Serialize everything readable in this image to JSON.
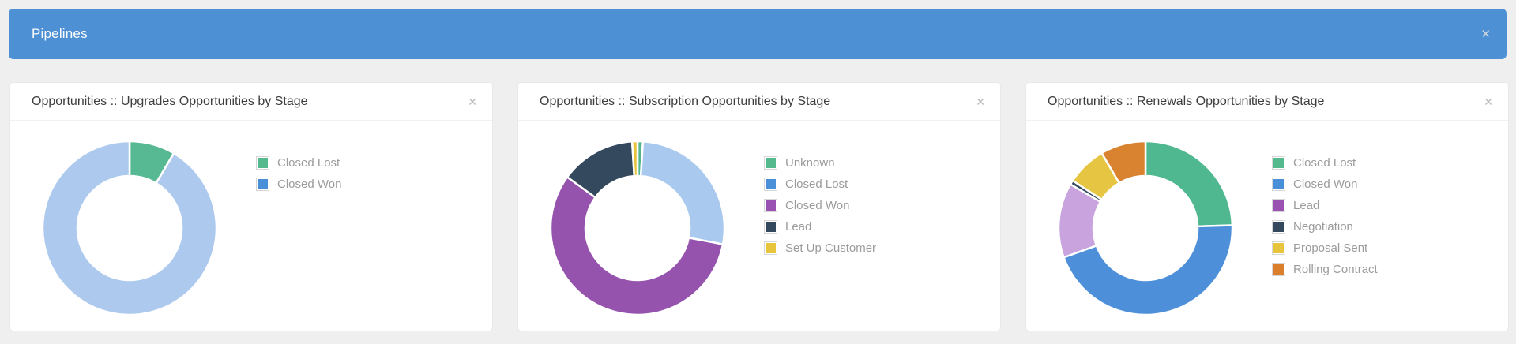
{
  "panel": {
    "title": "Pipelines",
    "close_glyph": "✕"
  },
  "colors": {
    "page_bg": "#efefef",
    "panel_header_bg": "#4e90d4",
    "panel_title_text": "#fdfdfd",
    "card_bg": "#ffffff",
    "card_title_text": "#3d3d3d",
    "legend_text": "#9b9b9b"
  },
  "cards": [
    {
      "title": "Opportunities :: Upgrades Opportunities by Stage",
      "close_glyph": "✕",
      "chart_data": {
        "type": "donut",
        "legend_position": "right",
        "slices": [
          {
            "label": "Closed Lost",
            "percent": 8.5,
            "slice_color": "#56b993",
            "legend_color": "#55b98e"
          },
          {
            "label": "Closed Won",
            "percent": 91.5,
            "slice_color": "#adcaee",
            "legend_color": "#4a90d8"
          }
        ]
      }
    },
    {
      "title": "Opportunities :: Subscription Opportunities by Stage",
      "close_glyph": "✕",
      "chart_data": {
        "type": "donut",
        "legend_position": "right",
        "slices": [
          {
            "label": "Unknown",
            "percent": 1,
            "slice_color": "#53b78e",
            "legend_color": "#55b98e"
          },
          {
            "label": "Closed Lost",
            "percent": 27,
            "slice_color": "#aac9ef",
            "legend_color": "#4a90d8"
          },
          {
            "label": "Closed Won",
            "percent": 57,
            "slice_color": "#9553ae",
            "legend_color": "#9a52b2"
          },
          {
            "label": "Lead",
            "percent": 14,
            "slice_color": "#34495e",
            "legend_color": "#34495e"
          },
          {
            "label": "Set Up Customer",
            "percent": 1,
            "slice_color": "#e8c33e",
            "legend_color": "#e6c53c"
          }
        ]
      }
    },
    {
      "title": "Opportunities :: Renewals Opportunities by Stage",
      "close_glyph": "✕",
      "chart_data": {
        "type": "donut",
        "legend_position": "right",
        "slices": [
          {
            "label": "Closed Lost",
            "percent": 24.5,
            "slice_color": "#4fb890",
            "legend_color": "#55b98e"
          },
          {
            "label": "Closed Won",
            "percent": 45,
            "slice_color": "#4e8fd9",
            "legend_color": "#4a90d8"
          },
          {
            "label": "Lead",
            "percent": 13.9,
            "slice_color": "#c8a3dd",
            "legend_color": "#9a52b2"
          },
          {
            "label": "Negotiation",
            "percent": 0.8,
            "slice_color": "#34495e",
            "legend_color": "#34495e"
          },
          {
            "label": "Proposal Sent",
            "percent": 7.4,
            "slice_color": "#e6c543",
            "legend_color": "#e6c53c"
          },
          {
            "label": "Rolling Contract",
            "percent": 8.4,
            "slice_color": "#d9822f",
            "legend_color": "#db7f2c"
          }
        ]
      }
    }
  ]
}
